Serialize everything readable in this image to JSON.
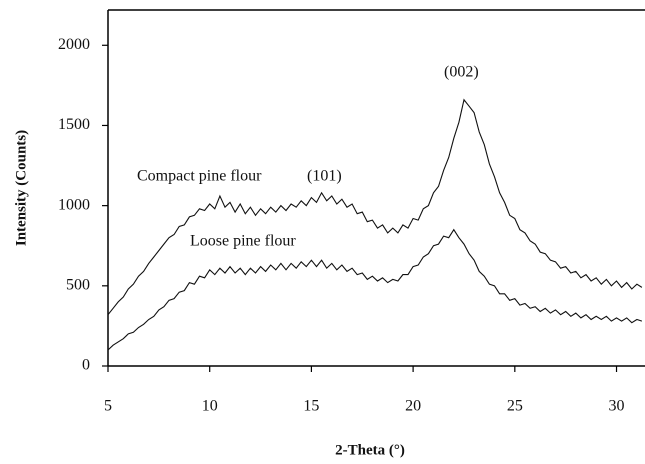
{
  "chart_data": {
    "type": "line",
    "x_label": "2-Theta (°)",
    "y_label": "Intensity (Counts)",
    "xlim": [
      5,
      31.4
    ],
    "ylim": [
      0,
      2220
    ],
    "xticks": [
      5,
      10,
      15,
      20,
      25,
      30
    ],
    "yticks": [
      0,
      500,
      1000,
      1500,
      2000
    ],
    "annotations": [
      "(101)",
      "(002)"
    ],
    "x": [
      5,
      5.25,
      5.5,
      5.75,
      6,
      6.25,
      6.5,
      6.75,
      7,
      7.25,
      7.5,
      7.75,
      8,
      8.25,
      8.5,
      8.75,
      9,
      9.25,
      9.5,
      9.75,
      10,
      10.25,
      10.5,
      10.75,
      11,
      11.25,
      11.5,
      11.75,
      12,
      12.25,
      12.5,
      12.75,
      13,
      13.25,
      13.5,
      13.75,
      14,
      14.25,
      14.5,
      14.75,
      15,
      15.25,
      15.5,
      15.75,
      16,
      16.25,
      16.5,
      16.75,
      17,
      17.25,
      17.5,
      17.75,
      18,
      18.25,
      18.5,
      18.75,
      19,
      19.25,
      19.5,
      19.75,
      20,
      20.25,
      20.5,
      20.75,
      21,
      21.25,
      21.5,
      21.75,
      22,
      22.25,
      22.5,
      22.75,
      23,
      23.25,
      23.5,
      23.75,
      24,
      24.25,
      24.5,
      24.75,
      25,
      25.25,
      25.5,
      25.75,
      26,
      26.25,
      26.5,
      26.75,
      27,
      27.25,
      27.5,
      27.75,
      28,
      28.25,
      28.5,
      28.75,
      29,
      29.25,
      29.5,
      29.75,
      30,
      30.25,
      30.5,
      30.75,
      31,
      31.25
    ],
    "series": [
      {
        "name": "Compact pine flour",
        "color": "#111111",
        "values": [
          320,
          360,
          400,
          430,
          480,
          510,
          560,
          590,
          640,
          680,
          720,
          760,
          800,
          820,
          870,
          880,
          930,
          940,
          980,
          970,
          1010,
          980,
          1060,
          990,
          1020,
          960,
          1010,
          950,
          990,
          940,
          980,
          950,
          990,
          960,
          1000,
          970,
          1010,
          990,
          1030,
          1000,
          1050,
          1020,
          1080,
          1030,
          1060,
          1010,
          1040,
          990,
          1010,
          950,
          960,
          900,
          910,
          860,
          880,
          830,
          860,
          830,
          880,
          860,
          920,
          910,
          980,
          1000,
          1080,
          1120,
          1220,
          1300,
          1420,
          1520,
          1660,
          1620,
          1580,
          1460,
          1380,
          1260,
          1180,
          1080,
          1020,
          940,
          920,
          850,
          830,
          780,
          760,
          710,
          700,
          660,
          650,
          610,
          620,
          580,
          590,
          550,
          570,
          530,
          550,
          510,
          540,
          500,
          530,
          490,
          520,
          480,
          510,
          490
        ]
      },
      {
        "name": "Loose pine flour",
        "color": "#111111",
        "values": [
          100,
          130,
          150,
          170,
          200,
          210,
          240,
          260,
          290,
          310,
          350,
          370,
          410,
          420,
          460,
          470,
          520,
          510,
          560,
          550,
          600,
          570,
          610,
          580,
          620,
          580,
          610,
          570,
          610,
          580,
          620,
          590,
          630,
          600,
          640,
          600,
          640,
          610,
          650,
          620,
          660,
          620,
          660,
          610,
          640,
          600,
          630,
          590,
          610,
          570,
          580,
          540,
          560,
          530,
          550,
          520,
          540,
          530,
          570,
          570,
          620,
          630,
          680,
          700,
          750,
          760,
          810,
          800,
          850,
          800,
          760,
          700,
          660,
          590,
          560,
          510,
          500,
          450,
          450,
          410,
          420,
          380,
          390,
          360,
          370,
          340,
          360,
          330,
          350,
          320,
          340,
          310,
          330,
          300,
          320,
          290,
          310,
          290,
          310,
          280,
          300,
          280,
          300,
          270,
          290,
          280
        ]
      }
    ]
  }
}
